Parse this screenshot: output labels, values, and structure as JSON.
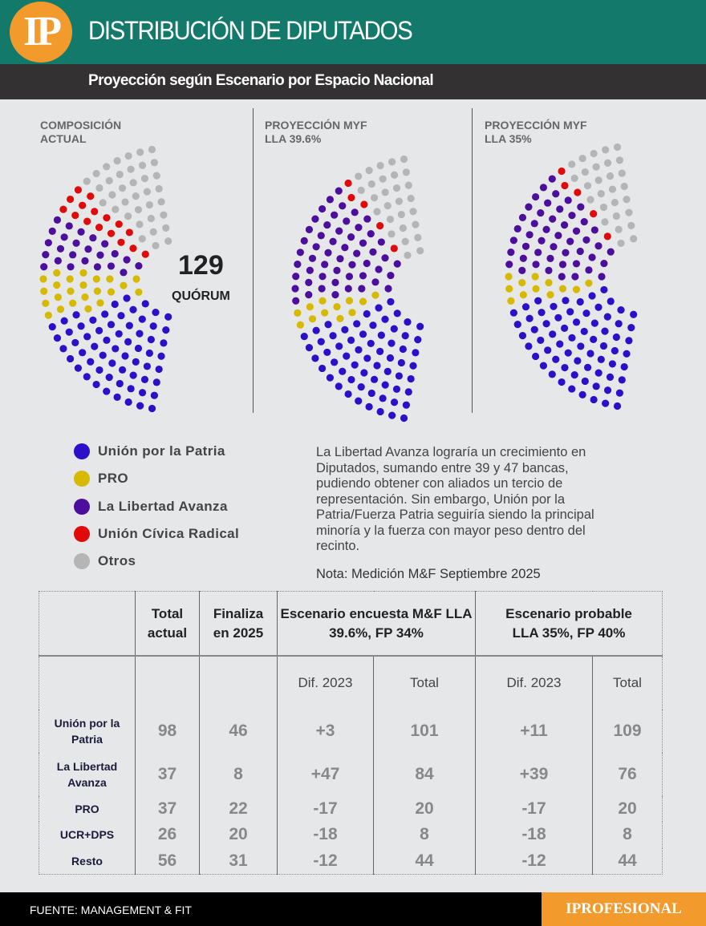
{
  "header": {
    "logo": "IP",
    "title": "DISTRIBUCIÓN DE DIPUTADOS",
    "subtitle": "Proyección según Escenario por Espacio Nacional"
  },
  "colors": {
    "Unión por la Patria": "#2b10c9",
    "PRO": "#d6b900",
    "La Libertad Avanza": "#4c0e9c",
    "Unión Cívica Radical": "#e00a0a",
    "Otros": "#b5b5b5"
  },
  "chart_data": [
    {
      "type": "parliament",
      "title": "COMPOSICIÓN ACTUAL",
      "subtitle": "",
      "order": [
        "Otros",
        "Unión Cívica Radical",
        "La Libertad Avanza",
        "PRO",
        "Unión por la Patria"
      ],
      "values": [
        56,
        26,
        37,
        37,
        98
      ]
    },
    {
      "type": "parliament",
      "title": "PROYECCIÓN MYF",
      "subtitle": "LLA 39.6%",
      "order": [
        "Otros",
        "Unión Cívica Radical",
        "La Libertad Avanza",
        "PRO",
        "Unión por la Patria"
      ],
      "values": [
        44,
        8,
        84,
        20,
        101
      ]
    },
    {
      "type": "parliament",
      "title": "PROYECCIÓN MYF",
      "subtitle": "LLA 35%",
      "order": [
        "Otros",
        "Unión Cívica Radical",
        "La Libertad Avanza",
        "PRO",
        "Unión por la Patria"
      ],
      "values": [
        44,
        8,
        76,
        20,
        109
      ]
    }
  ],
  "quorum": {
    "value": "129",
    "label": "QUÓRUM"
  },
  "legend": [
    "Unión por la Patria",
    "PRO",
    "La Libertad Avanza",
    "Unión Cívica Radical",
    "Otros"
  ],
  "paragraph": "La Libertad Avanza lograría un crecimiento en Diputados, sumando entre 39 y 47 bancas, pudiendo obtener con aliados un tercio de representación. Sin embargo, Unión por la Patria/Fuerza Patria seguiría siendo la principal minoría y la fuerza con mayor peso dentro del recinto.",
  "note": "Nota: Medición M&F Septiembre 2025",
  "table": {
    "headers": [
      "",
      "Total actual",
      "Finaliza en 2025",
      "Escenario encuesta M&F LLA 39.6%, FP 34%",
      "Escenario probable LLA 35%, FP 40%"
    ],
    "subheaders": [
      "Dif. 2023",
      "Total",
      "Dif. 2023",
      "Total"
    ],
    "rows": [
      [
        "Unión por la Patria",
        "98",
        "46",
        "+3",
        "101",
        "+11",
        "109"
      ],
      [
        "La Libertad Avanza",
        "37",
        "8",
        "+47",
        "84",
        "+39",
        "76"
      ],
      [
        "PRO",
        "37",
        "22",
        "-17",
        "20",
        "-17",
        "20"
      ],
      [
        "UCR+DPS",
        "26",
        "20",
        "-18",
        "8",
        "-18",
        "8"
      ],
      [
        "Resto",
        "56",
        "31",
        "-12",
        "44",
        "-12",
        "44"
      ]
    ]
  },
  "footer": {
    "source": "FUENTE: MANAGEMENT & FIT",
    "brand": "IPROFESIONAL"
  }
}
